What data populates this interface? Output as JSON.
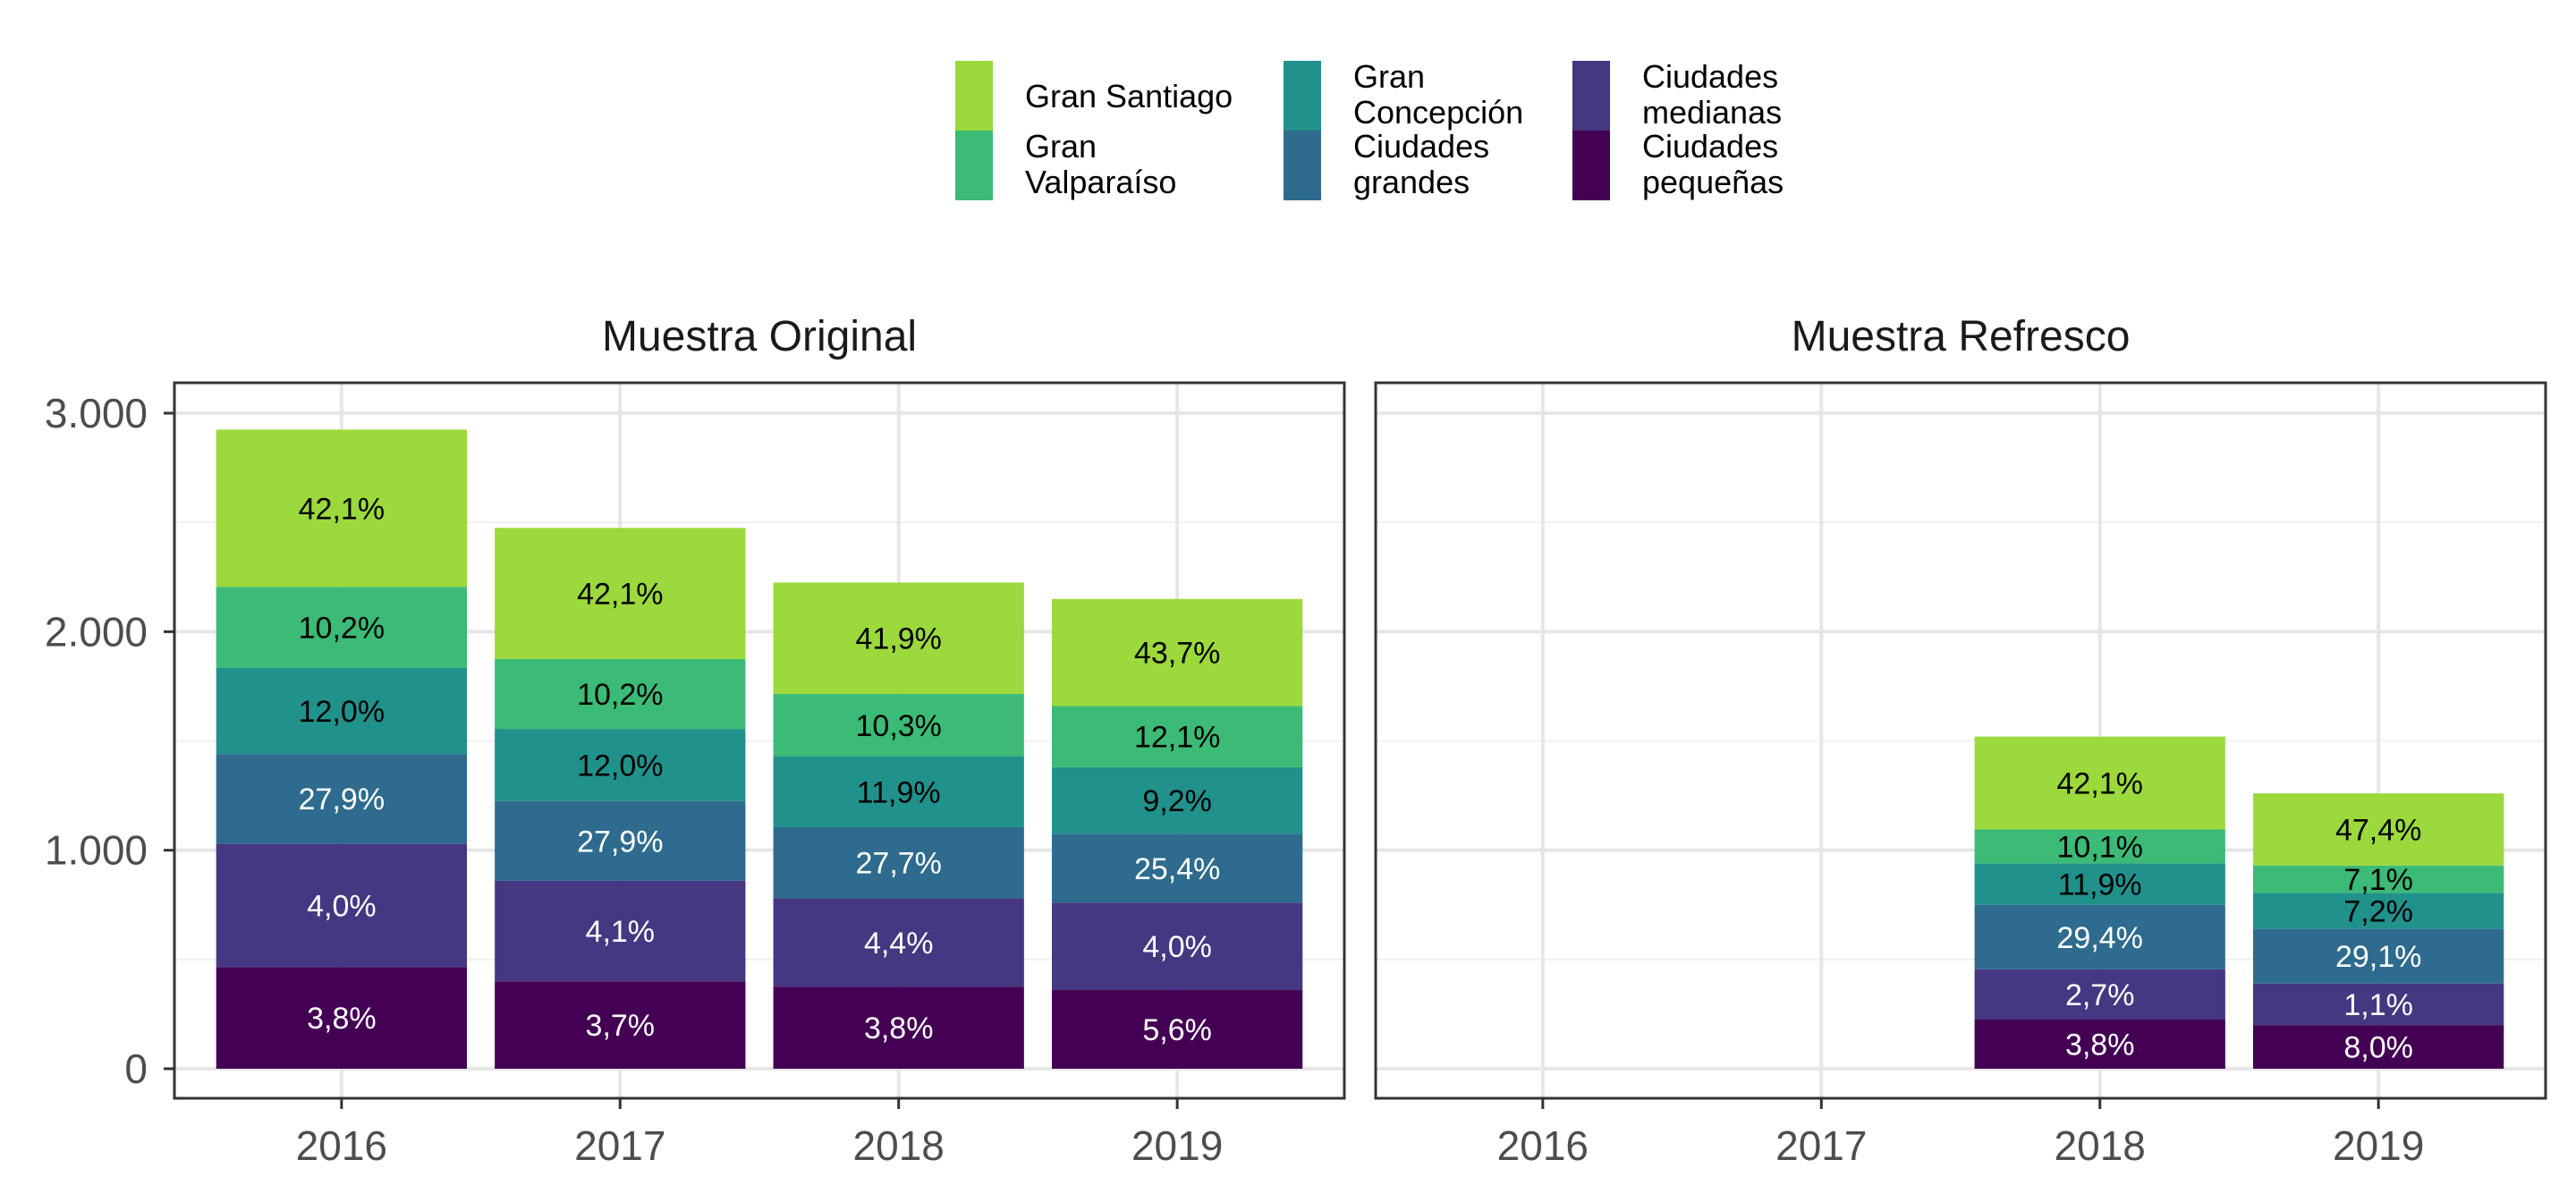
{
  "chart_data": {
    "type": "bar",
    "stacked": true,
    "facets": [
      "Muestra Original",
      "Muestra Refresco"
    ],
    "categories": [
      "2016",
      "2017",
      "2018",
      "2019"
    ],
    "ylim": [
      0,
      3150
    ],
    "y_ticks": [
      0,
      1000,
      2000,
      3000
    ],
    "y_tick_labels": [
      "0",
      "1.000",
      "2.000",
      "3.000"
    ],
    "xlabel": "",
    "ylabel": "",
    "grid": true,
    "legend_position": "top",
    "legend": [
      {
        "key": "gran_santiago",
        "label": [
          "Gran Santiago"
        ],
        "color": "#9BD93C"
      },
      {
        "key": "gran_valparaiso",
        "label": [
          "Gran",
          "Valparaíso"
        ],
        "color": "#3BBB75"
      },
      {
        "key": "gran_concepcion",
        "label": [
          "Gran",
          "Concepción"
        ],
        "color": "#21918C"
      },
      {
        "key": "ciudades_grandes",
        "label": [
          "Ciudades",
          "grandes"
        ],
        "color": "#2E6B8E"
      },
      {
        "key": "ciudades_medianas",
        "label": [
          "Ciudades",
          "medianas"
        ],
        "color": "#453781"
      },
      {
        "key": "ciudades_pequenas",
        "label": [
          "Ciudades",
          "pequeñas"
        ],
        "color": "#440154"
      }
    ],
    "stack_order_bottom_to_top": [
      "ciudades_pequenas",
      "ciudades_medianas",
      "ciudades_grandes",
      "gran_concepcion",
      "gran_valparaiso",
      "gran_santiago"
    ],
    "panels": [
      {
        "title": "Muestra Original",
        "bars": [
          {
            "category": "2016",
            "segments": [
              {
                "series": "ciudades_pequenas",
                "value": 465,
                "label": "3,8%"
              },
              {
                "series": "ciudades_medianas",
                "value": 565,
                "label": "4,0%"
              },
              {
                "series": "ciudades_grandes",
                "value": 410,
                "label": "27,9%"
              },
              {
                "series": "gran_concepcion",
                "value": 395,
                "label": "12,0%"
              },
              {
                "series": "gran_valparaiso",
                "value": 370,
                "label": "10,2%"
              },
              {
                "series": "gran_santiago",
                "value": 720,
                "label": "42,1%"
              }
            ]
          },
          {
            "category": "2017",
            "segments": [
              {
                "series": "ciudades_pequenas",
                "value": 400,
                "label": "3,7%"
              },
              {
                "series": "ciudades_medianas",
                "value": 460,
                "label": "4,1%"
              },
              {
                "series": "ciudades_grandes",
                "value": 365,
                "label": "27,9%"
              },
              {
                "series": "gran_concepcion",
                "value": 330,
                "label": "12,0%"
              },
              {
                "series": "gran_valparaiso",
                "value": 320,
                "label": "10,2%"
              },
              {
                "series": "gran_santiago",
                "value": 600,
                "label": "42,1%"
              }
            ]
          },
          {
            "category": "2018",
            "segments": [
              {
                "series": "ciudades_pequenas",
                "value": 375,
                "label": "3,8%"
              },
              {
                "series": "ciudades_medianas",
                "value": 405,
                "label": "4,4%"
              },
              {
                "series": "ciudades_grandes",
                "value": 325,
                "label": "27,7%"
              },
              {
                "series": "gran_concepcion",
                "value": 325,
                "label": "11,9%"
              },
              {
                "series": "gran_valparaiso",
                "value": 285,
                "label": "10,3%"
              },
              {
                "series": "gran_santiago",
                "value": 510,
                "label": "41,9%"
              }
            ]
          },
          {
            "category": "2019",
            "segments": [
              {
                "series": "ciudades_pequenas",
                "value": 360,
                "label": "5,6%"
              },
              {
                "series": "ciudades_medianas",
                "value": 400,
                "label": "4,0%"
              },
              {
                "series": "ciudades_grandes",
                "value": 315,
                "label": "25,4%"
              },
              {
                "series": "gran_concepcion",
                "value": 305,
                "label": "9,2%"
              },
              {
                "series": "gran_valparaiso",
                "value": 280,
                "label": "12,1%"
              },
              {
                "series": "gran_santiago",
                "value": 490,
                "label": "43,7%"
              }
            ]
          }
        ]
      },
      {
        "title": "Muestra Refresco",
        "bars": [
          {
            "category": "2018",
            "segments": [
              {
                "series": "ciudades_pequenas",
                "value": 225,
                "label": "3,8%"
              },
              {
                "series": "ciudades_medianas",
                "value": 230,
                "label": "2,7%"
              },
              {
                "series": "ciudades_grandes",
                "value": 295,
                "label": "29,4%"
              },
              {
                "series": "gran_concepcion",
                "value": 190,
                "label": "11,9%"
              },
              {
                "series": "gran_valparaiso",
                "value": 155,
                "label": "10,1%"
              },
              {
                "series": "gran_santiago",
                "value": 425,
                "label": "42,1%"
              }
            ]
          },
          {
            "category": "2019",
            "segments": [
              {
                "series": "ciudades_pequenas",
                "value": 200,
                "label": "8,0%"
              },
              {
                "series": "ciudades_medianas",
                "value": 190,
                "label": "1,1%"
              },
              {
                "series": "ciudades_grandes",
                "value": 250,
                "label": "29,1%"
              },
              {
                "series": "gran_concepcion",
                "value": 165,
                "label": "7,2%"
              },
              {
                "series": "gran_valparaiso",
                "value": 125,
                "label": "7,1%"
              },
              {
                "series": "gran_santiago",
                "value": 330,
                "label": "47,4%"
              }
            ]
          }
        ]
      }
    ]
  }
}
